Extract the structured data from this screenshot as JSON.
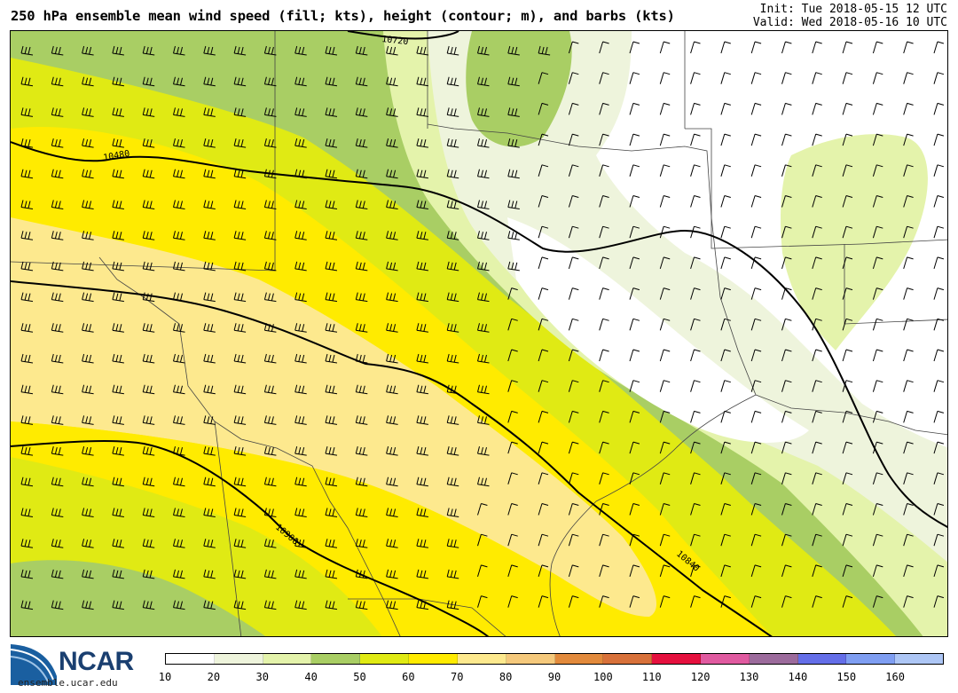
{
  "header": {
    "title": "250 hPa ensemble mean wind speed (fill; kts), height (contour; m), and barbs (kts)",
    "init": "Init: Tue 2018-05-15 12 UTC",
    "valid": "Valid: Wed 2018-05-16 10 UTC"
  },
  "map": {
    "contour_labels": [
      "10720",
      "10480",
      "10900",
      "10840"
    ],
    "field": "250 hPa wind speed",
    "region": "Southern Plains / Texas / Louisiana"
  },
  "colorbar": {
    "ticks": [
      "10",
      "20",
      "30",
      "40",
      "50",
      "60",
      "70",
      "80",
      "90",
      "100",
      "110",
      "120",
      "130",
      "140",
      "150",
      "160"
    ],
    "colors": [
      "#ffffff",
      "#eef4dc",
      "#e4f3ab",
      "#a9ce64",
      "#e0ea14",
      "#ffeb00",
      "#fde98e",
      "#f5c97c",
      "#e28a3c",
      "#d8713a",
      "#e5103e",
      "#e05aa0",
      "#9c6b9c",
      "#646ee8",
      "#7f9ef2",
      "#adc6f5"
    ]
  },
  "logo": {
    "name": "NCAR",
    "url": "ensemble.ucar.edu"
  }
}
